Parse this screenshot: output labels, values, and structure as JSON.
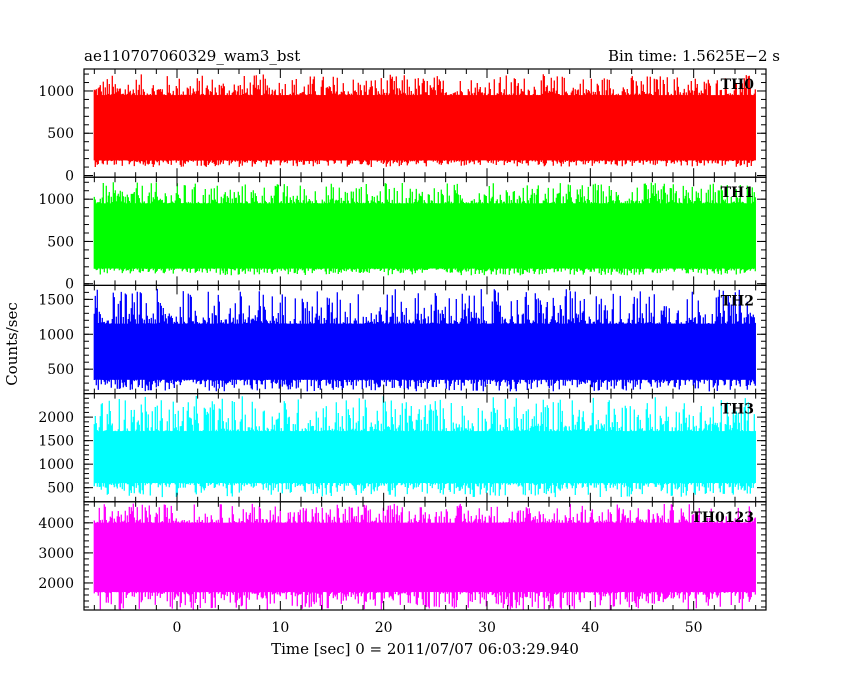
{
  "header": {
    "title": "ae110707060329_wam3_bst",
    "bin_time": "Bin time: 1.5625E−2 s"
  },
  "chart_data": {
    "type": "line",
    "xlabel": "Time [sec] 0 = 2011/07/07 06:03:29.940",
    "ylabel": "Counts/sec",
    "xlim": [
      -9,
      57
    ],
    "x_ticks": [
      0,
      10,
      20,
      30,
      40,
      50
    ],
    "data_x_range": [
      -8,
      56
    ],
    "panels": [
      {
        "name": "TH0",
        "color": "#ff0000",
        "ylim": [
          -20,
          1260
        ],
        "y_ticks": [
          0,
          500,
          1000
        ],
        "level_range": [
          100,
          1200
        ],
        "typical_range": [
          180,
          950
        ]
      },
      {
        "name": "TH1",
        "color": "#00ff00",
        "ylim": [
          -20,
          1260
        ],
        "y_ticks": [
          0,
          500,
          1000
        ],
        "level_range": [
          100,
          1200
        ],
        "typical_range": [
          180,
          950
        ]
      },
      {
        "name": "TH2",
        "color": "#0000ff",
        "ylim": [
          150,
          1700
        ],
        "y_ticks": [
          500,
          1000,
          1500
        ],
        "level_range": [
          180,
          1650
        ],
        "typical_range": [
          350,
          1150
        ]
      },
      {
        "name": "TH3",
        "color": "#00ffff",
        "ylim": [
          200,
          2500
        ],
        "y_ticks": [
          500,
          1000,
          1500,
          2000
        ],
        "level_range": [
          300,
          2450
        ],
        "typical_range": [
          600,
          1700
        ]
      },
      {
        "name": "TH0123",
        "color": "#ff00ff",
        "ylim": [
          1100,
          4700
        ],
        "y_ticks": [
          2000,
          3000,
          4000
        ],
        "level_range": [
          1100,
          4650
        ],
        "typical_range": [
          1700,
          4000
        ]
      }
    ]
  }
}
